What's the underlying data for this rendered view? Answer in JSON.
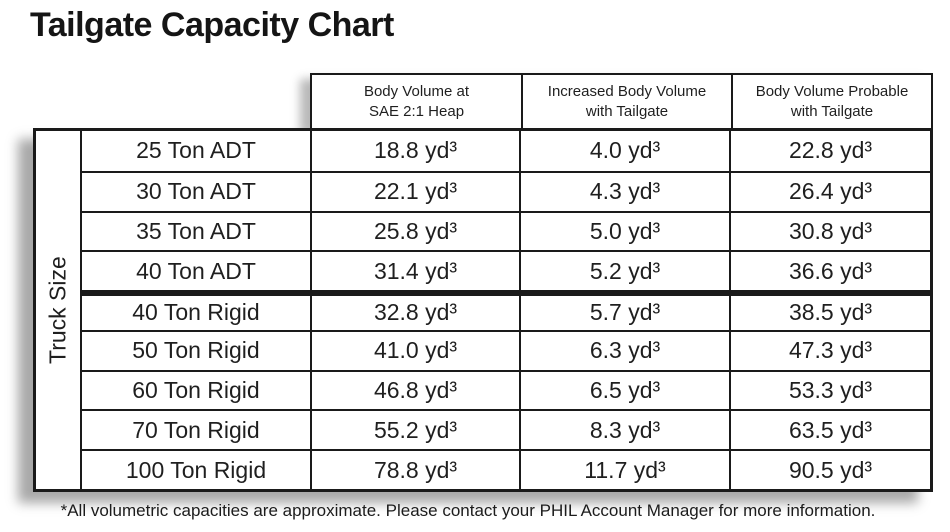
{
  "title": "Tailgate Capacity Chart",
  "chart_data": {
    "type": "table",
    "title": "Tailgate Capacity Chart",
    "row_group_label": "Truck Size",
    "columns": [
      "Body Volume at\nSAE 2:1 Heap",
      "Increased Body Volume\nwith Tailgate",
      "Body Volume Probable\nwith Tailgate"
    ],
    "rows": [
      {
        "label": "25 Ton ADT",
        "sae_heap": "18.8 yd³",
        "tailgate_increase": "4.0 yd³",
        "probable": "22.8 yd³"
      },
      {
        "label": "30 Ton ADT",
        "sae_heap": "22.1 yd³",
        "tailgate_increase": "4.3 yd³",
        "probable": "26.4 yd³"
      },
      {
        "label": "35 Ton ADT",
        "sae_heap": "25.8 yd³",
        "tailgate_increase": "5.0 yd³",
        "probable": "30.8 yd³"
      },
      {
        "label": "40 Ton ADT",
        "sae_heap": "31.4 yd³",
        "tailgate_increase": "5.2 yd³",
        "probable": "36.6 yd³"
      },
      {
        "label": "40 Ton Rigid",
        "sae_heap": "32.8 yd³",
        "tailgate_increase": "5.7 yd³",
        "probable": "38.5 yd³"
      },
      {
        "label": "50 Ton Rigid",
        "sae_heap": "41.0 yd³",
        "tailgate_increase": "6.3 yd³",
        "probable": "47.3 yd³"
      },
      {
        "label": "60 Ton Rigid",
        "sae_heap": "46.8 yd³",
        "tailgate_increase": "6.5 yd³",
        "probable": "53.3 yd³"
      },
      {
        "label": "70 Ton Rigid",
        "sae_heap": "55.2 yd³",
        "tailgate_increase": "8.3 yd³",
        "probable": "63.5 yd³"
      },
      {
        "label": "100 Ton Rigid",
        "sae_heap": "78.8 yd³",
        "tailgate_increase": "11.7 yd³",
        "probable": "90.5 yd³"
      }
    ],
    "group_separator_after_row": 4
  },
  "footer": {
    "note": "*All volumetric capacities are approximate. Please contact your PHIL Account Manager for more information."
  },
  "colors": {
    "border": "#1a1a1a",
    "text": "#1f1f1f",
    "background": "#ffffff"
  }
}
